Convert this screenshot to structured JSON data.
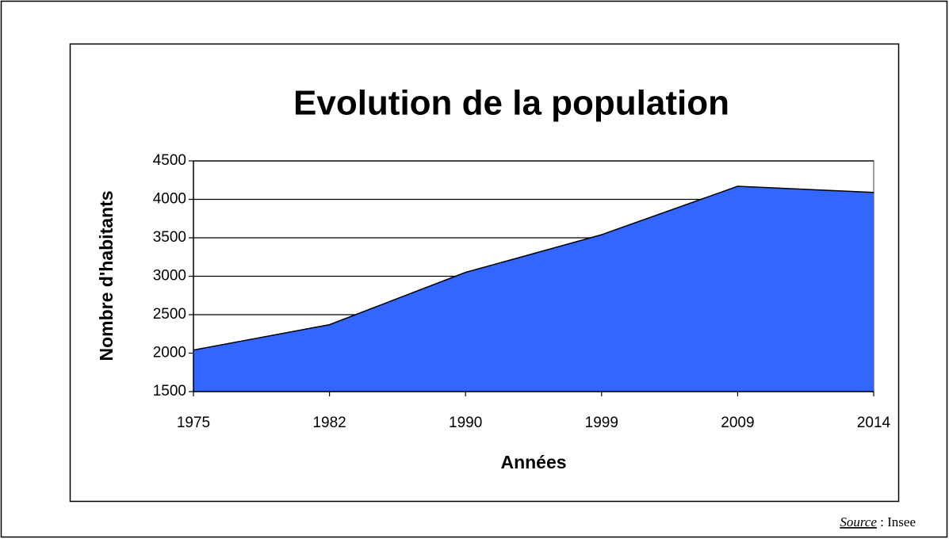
{
  "chart_data": {
    "type": "area",
    "title": "Evolution de la population",
    "ylabel": "Nombre d'habitants",
    "xlabel": "Années",
    "categories": [
      "1975",
      "1982",
      "1990",
      "1999",
      "2009",
      "2014"
    ],
    "values": [
      2040,
      2370,
      3050,
      3540,
      4170,
      4090
    ],
    "color": "#3366ff",
    "ylim": [
      1500,
      4500
    ],
    "yticks": [
      1500,
      2000,
      2500,
      3000,
      3500,
      4000,
      4500
    ],
    "grid": true
  },
  "source": {
    "label": "Source",
    "text": ": Insee"
  }
}
